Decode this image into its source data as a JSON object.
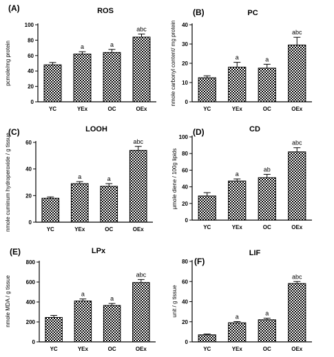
{
  "chart_data": [
    {
      "type": "bar",
      "panel": "(A)",
      "title": "ROS",
      "ylabel": "pcmole/mg protein",
      "xlabel": "",
      "ylim": [
        0,
        100
      ],
      "yticks": [
        0,
        20,
        40,
        60,
        80,
        100
      ],
      "categories": [
        "YC",
        "YEx",
        "OC",
        "OEx"
      ],
      "values": [
        48,
        62,
        64,
        84
      ],
      "errors": [
        3,
        3,
        4,
        4
      ],
      "annotations": [
        "",
        "a",
        "a",
        "abc"
      ]
    },
    {
      "type": "bar",
      "panel": "(B)",
      "title": "PC",
      "ylabel": "nmole carbonyl content/ mg protein",
      "xlabel": "",
      "ylim": [
        0,
        40
      ],
      "yticks": [
        0,
        10,
        20,
        30,
        40
      ],
      "categories": [
        "YC",
        "YEx",
        "OC",
        "OEx"
      ],
      "values": [
        12.5,
        18,
        17.5,
        29.5
      ],
      "errors": [
        1,
        2.5,
        2,
        4
      ],
      "annotations": [
        "",
        "a",
        "a",
        "abc"
      ]
    },
    {
      "type": "bar",
      "panel": "(C)",
      "title": "LOOH",
      "ylabel": "nmole cuminum hydroperoxide / g tissue",
      "xlabel": "",
      "ylim": [
        0,
        60
      ],
      "yticks": [
        0,
        20,
        40,
        60
      ],
      "categories": [
        "YC",
        "YEx",
        "OC",
        "OEx"
      ],
      "values": [
        18,
        29,
        27,
        54
      ],
      "errors": [
        1,
        1.5,
        2,
        3
      ],
      "annotations": [
        "",
        "a",
        "a",
        "abc"
      ]
    },
    {
      "type": "bar",
      "panel": "(D)",
      "title": "CD",
      "ylabel": "μmole diene / 100g lipids",
      "xlabel": "",
      "ylim": [
        0,
        100
      ],
      "yticks": [
        0,
        20,
        40,
        60,
        80,
        100
      ],
      "categories": [
        "YC",
        "YEx",
        "OC",
        "OEx"
      ],
      "values": [
        29,
        47,
        51,
        82
      ],
      "errors": [
        4,
        2.5,
        4,
        5
      ],
      "annotations": [
        "",
        "a",
        "ab",
        "abc"
      ]
    },
    {
      "type": "bar",
      "panel": "(E)",
      "title": "LPx",
      "ylabel": "nmole MDA / g tissue",
      "xlabel": "",
      "ylim": [
        0,
        800
      ],
      "yticks": [
        0,
        200,
        400,
        600,
        800
      ],
      "categories": [
        "YC",
        "YEx",
        "OC",
        "OEx"
      ],
      "values": [
        245,
        410,
        365,
        595
      ],
      "errors": [
        20,
        20,
        20,
        30
      ],
      "annotations": [
        "",
        "a",
        "a",
        "abc"
      ]
    },
    {
      "type": "bar",
      "panel": "(F)",
      "title": "LIF",
      "ylabel": "unit / g tissue",
      "xlabel": "",
      "ylim": [
        0,
        80
      ],
      "yticks": [
        0,
        20,
        40,
        60,
        80
      ],
      "categories": [
        "YC",
        "YEx",
        "OC",
        "OEx"
      ],
      "values": [
        7,
        19,
        22,
        58
      ],
      "errors": [
        0.8,
        1.2,
        1.5,
        2
      ],
      "annotations": [
        "",
        "a",
        "a",
        "abc"
      ]
    }
  ]
}
